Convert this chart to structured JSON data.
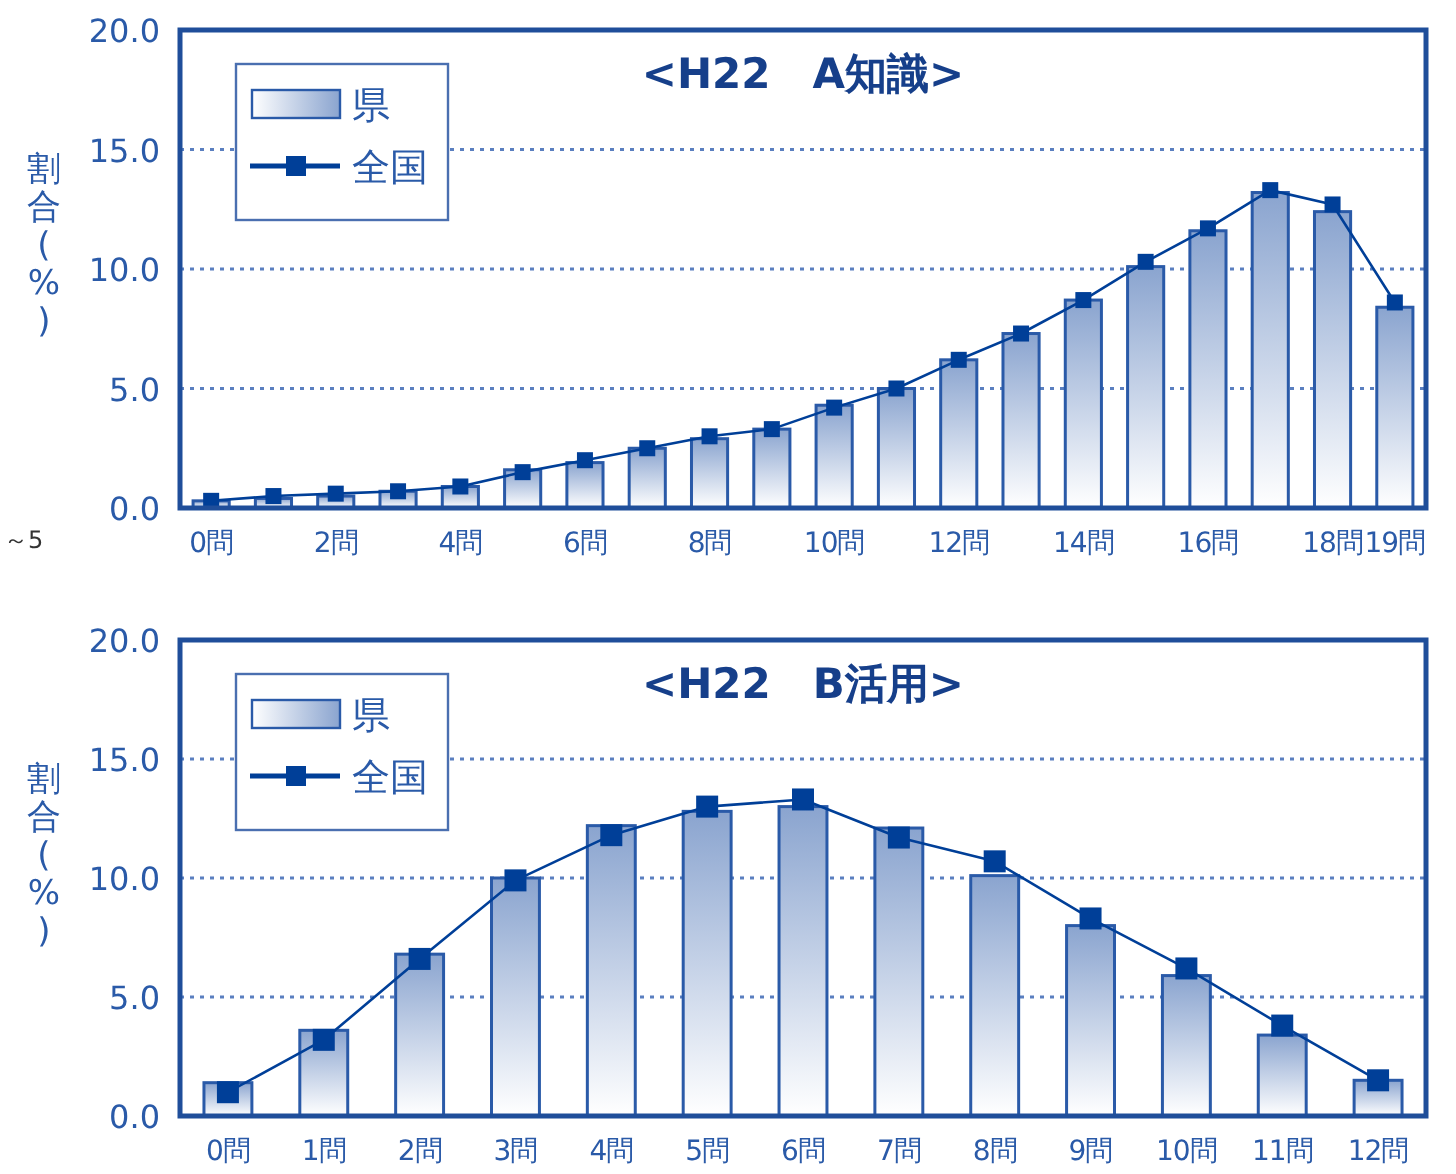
{
  "chart_data": [
    {
      "type": "bar",
      "title": "<H22　A知識>",
      "ylabel": "割合(%)",
      "annotations": [
        "～5"
      ],
      "categories": [
        "0問",
        null,
        "2問",
        null,
        "4問",
        null,
        "6問",
        null,
        "8問",
        null,
        "10問",
        null,
        "12問",
        null,
        "14問",
        null,
        "16問",
        null,
        "18問",
        "19問"
      ],
      "ylim": [
        0,
        20
      ],
      "yticks": [
        {
          "value": 0,
          "label": "0.0"
        },
        {
          "value": 5,
          "label": "5.0"
        },
        {
          "value": 10,
          "label": "10.0"
        },
        {
          "value": 15,
          "label": "15.0"
        },
        {
          "value": 20,
          "label": "20.0"
        }
      ],
      "grid": "y",
      "legend": "top left",
      "series": [
        {
          "name": "県",
          "type": "bar",
          "color": "#2a5aa8",
          "values": [
            0.3,
            0.4,
            0.5,
            0.7,
            0.9,
            1.6,
            1.9,
            2.5,
            2.9,
            3.3,
            4.3,
            5.0,
            6.2,
            7.3,
            8.7,
            10.1,
            11.6,
            13.2,
            12.4,
            8.4
          ]
        },
        {
          "name": "全国",
          "type": "line",
          "color": "#003f98",
          "marker": "square",
          "values": [
            0.3,
            0.5,
            0.6,
            0.7,
            0.9,
            1.5,
            2.0,
            2.5,
            3.0,
            3.3,
            4.2,
            5.0,
            6.2,
            7.3,
            8.7,
            10.3,
            11.7,
            13.3,
            12.7,
            8.6
          ]
        }
      ]
    },
    {
      "type": "bar",
      "title": "<H22　B活用>",
      "ylabel": "割合(%)",
      "categories": [
        "0問",
        "1問",
        "2問",
        "3問",
        "4問",
        "5問",
        "6問",
        "7問",
        "8問",
        "9問",
        "10問",
        "11問",
        "12問"
      ],
      "ylim": [
        0,
        20
      ],
      "yticks": [
        {
          "value": 0,
          "label": "0.0"
        },
        {
          "value": 5,
          "label": "5.0"
        },
        {
          "value": 10,
          "label": "10.0"
        },
        {
          "value": 15,
          "label": "15.0"
        },
        {
          "value": 20,
          "label": "20.0"
        }
      ],
      "grid": "y",
      "legend": "top left",
      "series": [
        {
          "name": "県",
          "type": "bar",
          "color": "#2a5aa8",
          "values": [
            1.4,
            3.6,
            6.8,
            10.0,
            12.2,
            12.8,
            13.0,
            12.1,
            10.1,
            8.0,
            5.9,
            3.4,
            1.5
          ]
        },
        {
          "name": "全国",
          "type": "line",
          "color": "#003f98",
          "marker": "square",
          "values": [
            1.0,
            3.2,
            6.6,
            9.9,
            11.8,
            13.0,
            13.3,
            11.7,
            10.7,
            8.3,
            6.2,
            3.8,
            1.5
          ]
        }
      ]
    }
  ]
}
